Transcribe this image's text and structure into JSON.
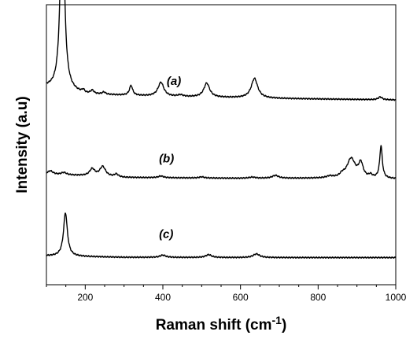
{
  "chart_data": {
    "type": "line",
    "title": "",
    "xlabel": "Raman shift (cm",
    "xlabel_superscript": "-1",
    "xlabel_suffix": ")",
    "ylabel": "Intensity (a.u)",
    "xlim": [
      100,
      1000
    ],
    "ylim": [
      0,
      1
    ],
    "x_ticks": [
      200,
      400,
      600,
      800,
      1000
    ],
    "y_tick_labels": false,
    "grid": false,
    "series": [
      {
        "name": "(a)",
        "peaks": [
          [
            141,
            0.725,
            6
          ],
          [
            195,
            0.01,
            4
          ],
          [
            218,
            0.012,
            5
          ],
          [
            248,
            0.008,
            5
          ],
          [
            318,
            0.035,
            5
          ],
          [
            395,
            0.05,
            9
          ],
          [
            445,
            0.006,
            8
          ],
          [
            513,
            0.05,
            9
          ],
          [
            636,
            0.07,
            10
          ],
          [
            960,
            0.01,
            6
          ]
        ],
        "baseline": [
          [
            100,
            0.705
          ],
          [
            200,
            0.68
          ],
          [
            400,
            0.672
          ],
          [
            700,
            0.665
          ],
          [
            1000,
            0.66
          ]
        ]
      },
      {
        "name": "(b)",
        "peaks": [
          [
            110,
            0.012,
            8
          ],
          [
            145,
            0.008,
            8
          ],
          [
            218,
            0.025,
            8
          ],
          [
            245,
            0.035,
            9
          ],
          [
            280,
            0.01,
            6
          ],
          [
            395,
            0.006,
            8
          ],
          [
            500,
            0.004,
            8
          ],
          [
            630,
            0.004,
            10
          ],
          [
            690,
            0.01,
            10
          ],
          [
            830,
            0.006,
            10
          ],
          [
            862,
            0.01,
            7
          ],
          [
            885,
            0.07,
            13
          ],
          [
            910,
            0.05,
            7
          ],
          [
            935,
            0.01,
            5
          ],
          [
            962,
            0.115,
            4
          ]
        ],
        "baseline": [
          [
            100,
            0.395
          ],
          [
            300,
            0.383
          ],
          [
            600,
            0.38
          ],
          [
            800,
            0.38
          ],
          [
            1000,
            0.378
          ]
        ]
      },
      {
        "name": "(c)",
        "peaks": [
          [
            149,
            0.155,
            6
          ],
          [
            400,
            0.008,
            9
          ],
          [
            518,
            0.01,
            9
          ],
          [
            641,
            0.013,
            10
          ]
        ],
        "baseline": [
          [
            100,
            0.103
          ],
          [
            300,
            0.098
          ],
          [
            600,
            0.097
          ],
          [
            1000,
            0.097
          ]
        ]
      }
    ],
    "series_label_positions": [
      [
        410,
        0.713
      ],
      [
        390,
        0.437
      ],
      [
        390,
        0.167
      ]
    ]
  }
}
